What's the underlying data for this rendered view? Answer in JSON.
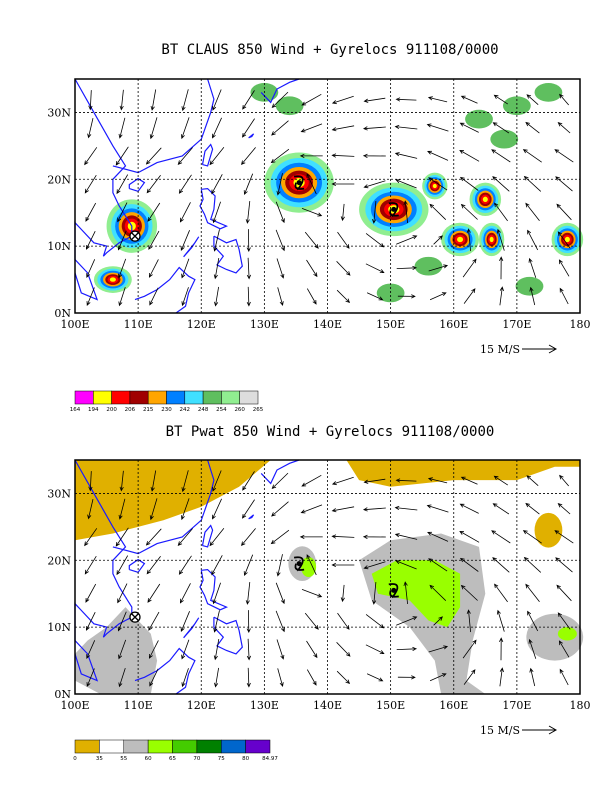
{
  "panels": [
    {
      "title": "BT CLAUS 850 Wind + Gyrelocs 911108/0000",
      "lat_ticks": [
        "0N",
        "10N",
        "20N",
        "30N"
      ],
      "lon_ticks": [
        "100E",
        "110E",
        "120E",
        "130E",
        "140E",
        "150E",
        "160E",
        "170E",
        "180"
      ],
      "vector_scale": "15 M/S",
      "colorbar": {
        "labels": [
          "164",
          "194",
          "200",
          "206",
          "215",
          "230",
          "242",
          "248",
          "254",
          "260",
          "265"
        ],
        "colors": [
          "#ff00ff",
          "#ffff00",
          "#ff0000",
          "#a00000",
          "#ffa500",
          "#0080ff",
          "#40e0ff",
          "#5fbf5f",
          "#90ee90",
          "#dddddd"
        ]
      }
    },
    {
      "title": "BT Pwat 850 Wind + Gyrelocs 911108/0000",
      "lat_ticks": [
        "0N",
        "10N",
        "20N",
        "30N"
      ],
      "lon_ticks": [
        "100E",
        "110E",
        "120E",
        "130E",
        "140E",
        "150E",
        "160E",
        "170E",
        "180"
      ],
      "vector_scale": "15 M/S",
      "colorbar": {
        "labels": [
          "0",
          "35",
          "55",
          "60",
          "65",
          "70",
          "75",
          "80",
          "84.97"
        ],
        "colors": [
          "#e0b000",
          "#ffffff",
          "#bdbdbd",
          "#99ff00",
          "#44cc00",
          "#008000",
          "#0066cc",
          "#6600cc"
        ]
      }
    }
  ],
  "storms": [
    {
      "lon": 135.5,
      "lat": 19.5
    },
    {
      "lon": 150.5,
      "lat": 15.5
    }
  ],
  "gyre_marker": {
    "lon": 109.5,
    "lat": 11.5
  }
}
